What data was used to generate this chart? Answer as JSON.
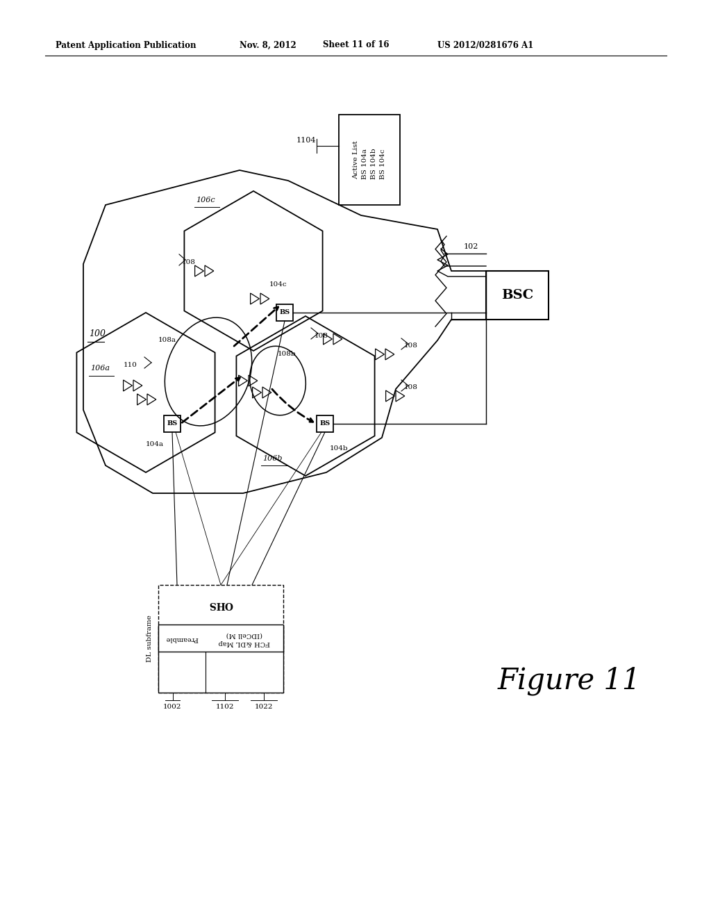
{
  "background_color": "#ffffff",
  "header_text": "Patent Application Publication",
  "header_date": "Nov. 8, 2012",
  "header_sheet": "Sheet 11 of 16",
  "header_patent": "US 2012/0281676 A1",
  "figure_label": "Figure 11"
}
